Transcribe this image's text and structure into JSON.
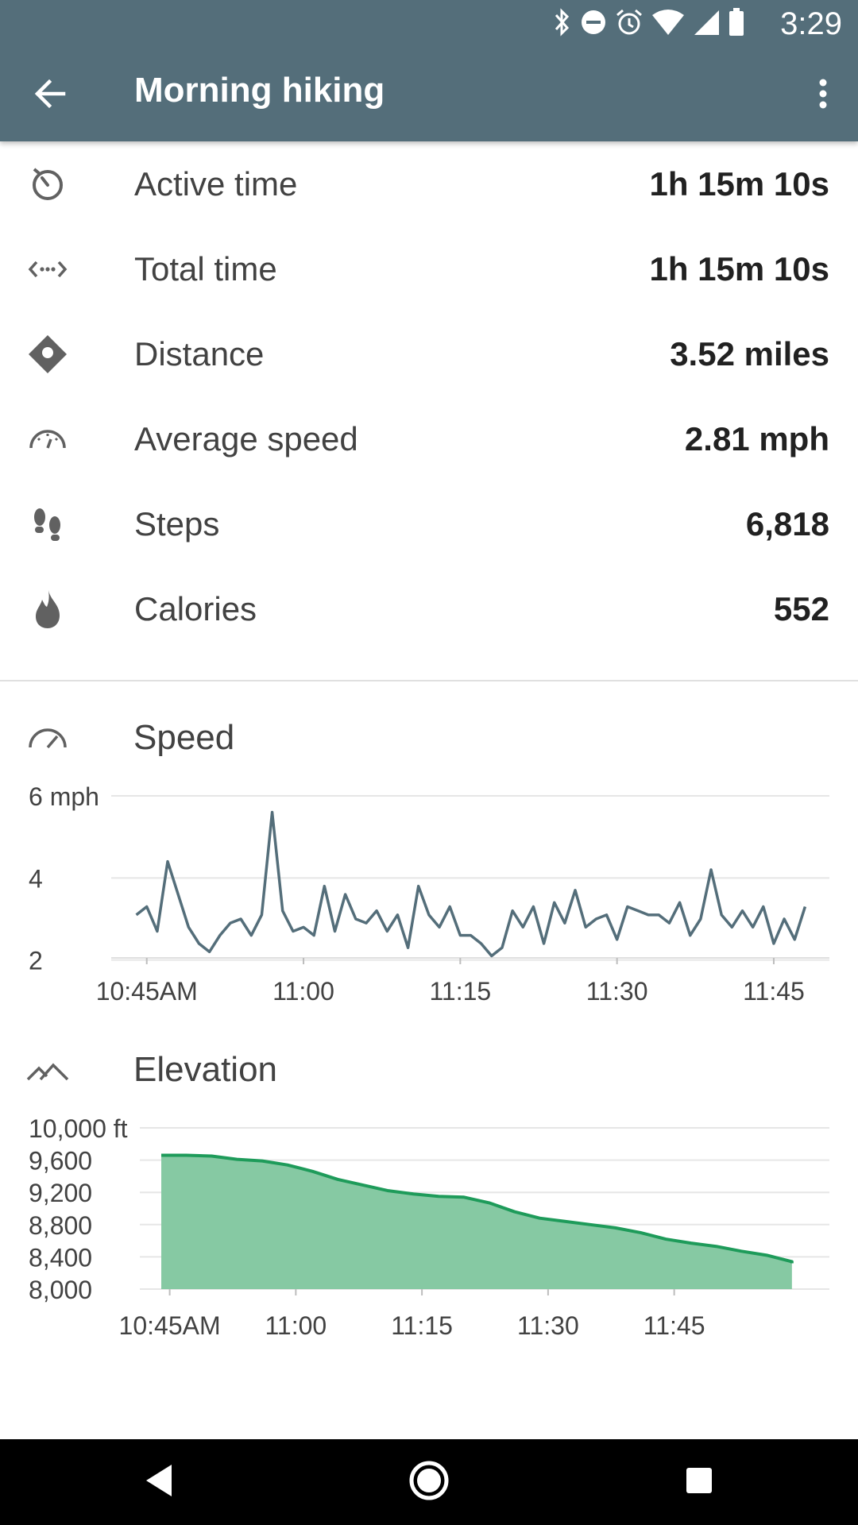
{
  "status_bar": {
    "time": "3:29",
    "icons": [
      "bluetooth-icon",
      "do-not-disturb-icon",
      "alarm-icon",
      "wifi-icon",
      "signal-icon",
      "battery-icon"
    ]
  },
  "app_bar": {
    "title": "Morning hiking",
    "back_icon": "arrow-back-icon",
    "overflow_icon": "more-vert-icon"
  },
  "stats": [
    {
      "label": "Active time",
      "value": "1h 15m 10s",
      "icon": "timer-icon"
    },
    {
      "label": "Total time",
      "value": "1h 15m 10s",
      "icon": "span-arrows-icon"
    },
    {
      "label": "Distance",
      "value": "3.52 miles",
      "icon": "directions-icon"
    },
    {
      "label": "Average speed",
      "value": "2.81 mph",
      "icon": "speedometer-icon"
    },
    {
      "label": "Steps",
      "value": "6,818",
      "icon": "footsteps-icon"
    },
    {
      "label": "Calories",
      "value": "552",
      "icon": "flame-icon"
    }
  ],
  "speed_section": {
    "title": "Speed",
    "icon": "speedometer-icon"
  },
  "elevation_section": {
    "title": "Elevation",
    "icon": "mountain-icon"
  },
  "chart_data": [
    {
      "type": "line",
      "title": "Speed",
      "y_unit": "mph",
      "yticks": [
        "6 mph",
        "4",
        "2"
      ],
      "ytick_values": [
        6,
        4,
        2
      ],
      "ylim": [
        0,
        6
      ],
      "xticks": [
        "10:45AM",
        "11:00",
        "11:15",
        "11:30",
        "11:45"
      ],
      "xtick_minutes": [
        0,
        15,
        30,
        45,
        60
      ],
      "xlim_minutes": [
        -1.5,
        63.5
      ],
      "color": "#546e7a",
      "grid": true,
      "series": [
        {
          "x_minutes": [
            -1,
            0,
            1,
            2,
            3,
            4,
            5,
            6,
            7,
            8,
            9,
            10,
            11,
            12,
            13,
            14,
            15,
            16,
            17,
            18,
            19,
            20,
            21,
            22,
            23,
            24,
            25,
            26,
            27,
            28,
            29,
            30,
            31,
            32,
            33,
            34,
            35,
            36,
            37,
            38,
            39,
            40,
            41,
            42,
            43,
            44,
            45,
            46,
            47,
            48,
            49,
            50,
            51,
            52,
            53,
            54,
            55,
            56,
            57,
            58,
            59,
            60,
            61,
            62,
            63
          ],
          "values": [
            3.1,
            3.3,
            2.7,
            4.4,
            3.6,
            2.8,
            2.4,
            2.2,
            2.6,
            2.9,
            3.0,
            2.6,
            3.1,
            5.6,
            3.2,
            2.7,
            2.8,
            2.6,
            3.8,
            2.7,
            3.6,
            3.0,
            2.9,
            3.2,
            2.7,
            3.1,
            2.3,
            3.8,
            3.1,
            2.8,
            3.3,
            2.6,
            2.6,
            2.4,
            2.1,
            2.3,
            3.2,
            2.8,
            3.3,
            2.4,
            3.4,
            2.9,
            3.7,
            2.8,
            3.0,
            3.1,
            2.5,
            3.3,
            3.2,
            3.1,
            3.1,
            2.9,
            3.4,
            2.6,
            3.0,
            4.2,
            3.1,
            2.8,
            3.2,
            2.8,
            3.3,
            2.4,
            3.0,
            2.5,
            3.3
          ]
        }
      ]
    },
    {
      "type": "area",
      "title": "Elevation",
      "y_unit": "ft",
      "yticks": [
        "10,000 ft",
        "9,600",
        "9,200",
        "8,800",
        "8,400",
        "8,000"
      ],
      "ytick_values": [
        10000,
        9600,
        9200,
        8800,
        8400,
        8000
      ],
      "ylim": [
        8000,
        10000
      ],
      "xticks": [
        "10:45AM",
        "11:00",
        "11:15",
        "11:30",
        "11:45"
      ],
      "xtick_minutes": [
        0,
        15,
        30,
        45,
        60
      ],
      "xlim_minutes": [
        -1,
        76
      ],
      "color": "#1e9b5a",
      "fill": "#86c9a3",
      "grid": true,
      "series": [
        {
          "x_minutes": [
            -1,
            2,
            5,
            8,
            11,
            14,
            17,
            20,
            23,
            26,
            29,
            32,
            35,
            38,
            41,
            44,
            47,
            50,
            53,
            56,
            59,
            62,
            65,
            68,
            71,
            74,
            74
          ],
          "values": [
            9660,
            9660,
            9650,
            9610,
            9590,
            9540,
            9460,
            9360,
            9290,
            9220,
            9180,
            9150,
            9140,
            9070,
            8960,
            8880,
            8840,
            8800,
            8760,
            8700,
            8620,
            8570,
            8530,
            8470,
            8420,
            8340,
            8320
          ]
        }
      ]
    }
  ]
}
